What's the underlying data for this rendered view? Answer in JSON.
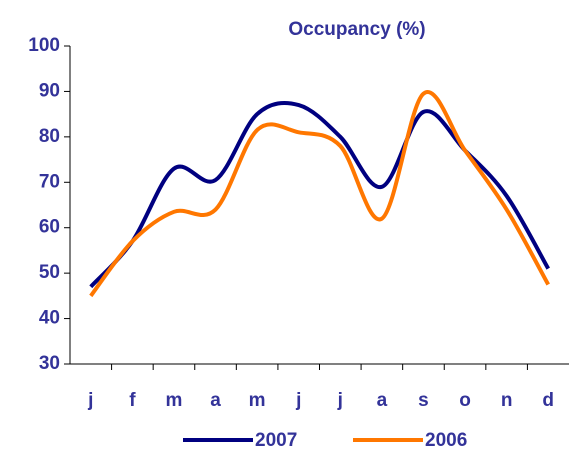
{
  "chart_data": {
    "type": "line",
    "title": "Occupancy (%)",
    "categories": [
      "j",
      "f",
      "m",
      "a",
      "m",
      "j",
      "j",
      "a",
      "s",
      "o",
      "n",
      "d"
    ],
    "series": [
      {
        "name": "2007",
        "color": "#000080",
        "values": [
          47,
          57,
          73,
          70.5,
          85,
          87,
          80,
          69,
          85.5,
          77,
          67,
          51
        ]
      },
      {
        "name": "2006",
        "color": "#ff7700",
        "values": [
          45,
          57,
          63.5,
          64,
          81.5,
          81,
          78,
          62,
          89.5,
          77,
          64,
          47.5
        ]
      }
    ],
    "ylim": [
      30,
      100
    ],
    "yticks": [
      30,
      40,
      50,
      60,
      70,
      80,
      90,
      100
    ],
    "grid": false,
    "legend": "bottom"
  }
}
